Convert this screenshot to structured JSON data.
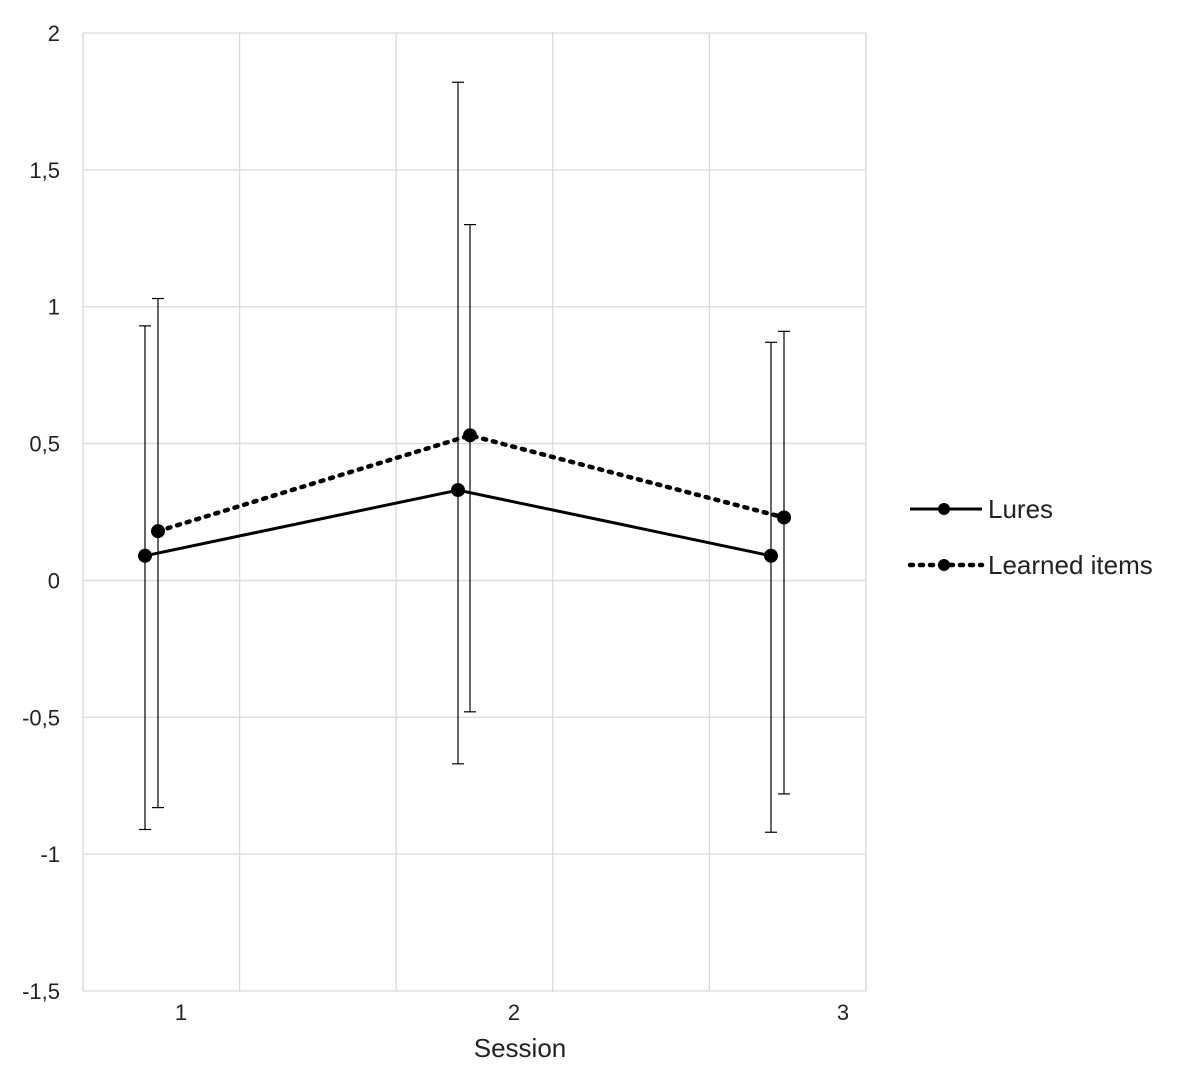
{
  "chart_data": {
    "type": "line",
    "title": "",
    "xlabel": "Session",
    "ylabel": "",
    "categories": [
      "1",
      "2",
      "3"
    ],
    "ylim": [
      -1.5,
      2
    ],
    "yticks": [
      "2",
      "1,5",
      "1",
      "0,5",
      "0",
      "-0,5",
      "-1",
      "-1,5"
    ],
    "ytick_values": [
      2,
      1.5,
      1,
      0.5,
      0,
      -0.5,
      -1,
      -1.5
    ],
    "grid": true,
    "legend_position": "right",
    "series": [
      {
        "name": "Lures",
        "style": "solid",
        "values": [
          0.09,
          0.33,
          0.09
        ],
        "error_upper": [
          0.93,
          1.82,
          0.87
        ],
        "error_lower": [
          -0.91,
          -0.67,
          -0.92
        ],
        "color": "#000000"
      },
      {
        "name": "Learned items",
        "style": "dotted",
        "values": [
          0.18,
          0.53,
          0.23
        ],
        "error_upper": [
          1.03,
          1.3,
          0.91
        ],
        "error_lower": [
          -0.83,
          -0.48,
          -0.78
        ],
        "color": "#000000"
      }
    ]
  }
}
